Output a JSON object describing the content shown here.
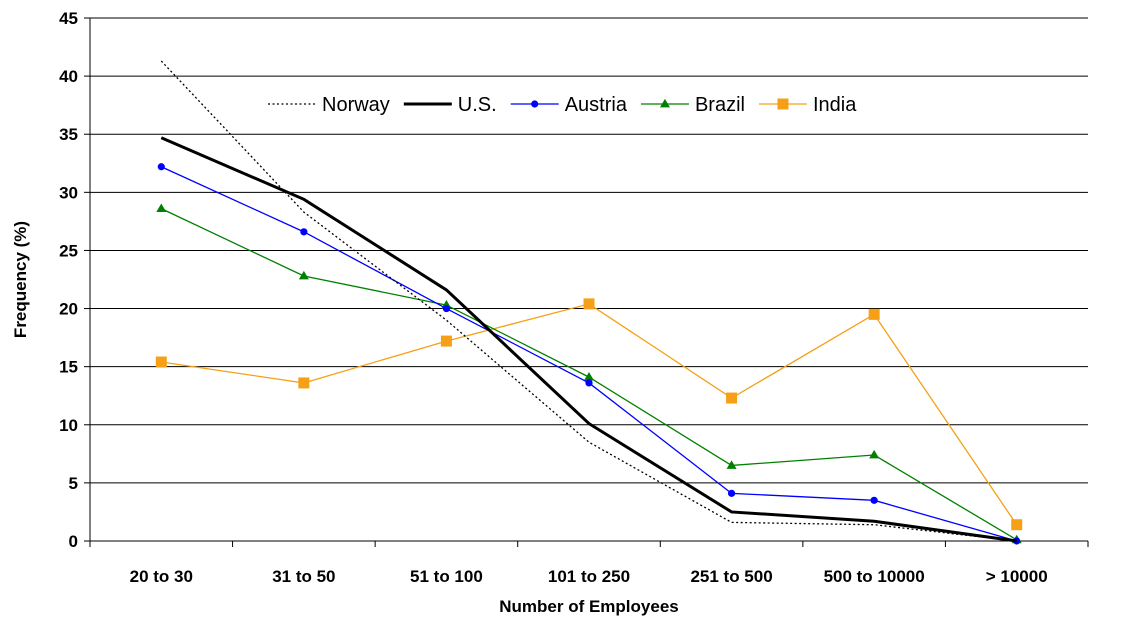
{
  "chart_data": {
    "type": "line",
    "title": "",
    "xlabel": "Number of Employees",
    "ylabel": "Frequency (%)",
    "ylim": [
      0,
      45
    ],
    "yticks": [
      "0",
      "5",
      "10",
      "15",
      "20",
      "25",
      "30",
      "35",
      "40",
      "45"
    ],
    "grid": "horizontal",
    "legend_position": "top-center",
    "categories": [
      "20 to 30",
      "31 to 50",
      "51 to 100",
      "101 to 250",
      "251 to 500",
      "500 to 10000",
      "> 10000"
    ],
    "series": [
      {
        "name": "Norway",
        "color": "#000000",
        "style": "dotted",
        "marker": "none",
        "values": [
          41.3,
          28.3,
          19.0,
          8.5,
          1.6,
          1.4,
          0.0
        ]
      },
      {
        "name": "U.S.",
        "color": "#000000",
        "style": "solid-bold",
        "marker": "none",
        "values": [
          34.7,
          29.4,
          21.6,
          10.1,
          2.5,
          1.7,
          0.0
        ]
      },
      {
        "name": "Austria",
        "color": "#0000ff",
        "style": "solid",
        "marker": "circle",
        "values": [
          32.2,
          26.6,
          20.0,
          13.6,
          4.1,
          3.5,
          0.0
        ]
      },
      {
        "name": "Brazil",
        "color": "#008000",
        "style": "solid",
        "marker": "triangle",
        "values": [
          28.6,
          22.8,
          20.3,
          14.1,
          6.5,
          7.4,
          0.1
        ]
      },
      {
        "name": "India",
        "color": "#f5a017",
        "style": "solid",
        "marker": "square",
        "values": [
          15.4,
          13.6,
          17.2,
          20.4,
          12.3,
          19.5,
          1.4
        ]
      }
    ]
  }
}
